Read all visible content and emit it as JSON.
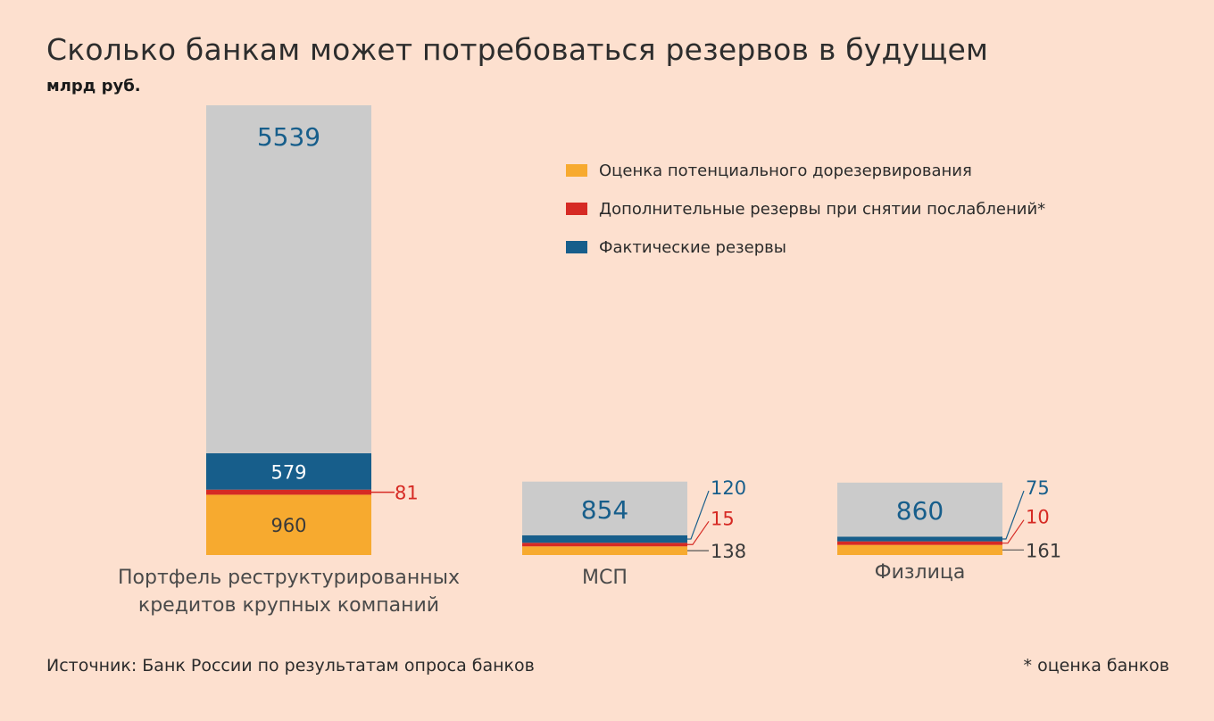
{
  "title": "Сколько банкам может потребоваться резервов в будущем",
  "unit": "млрд руб.",
  "source": "Источник: Банк России по результатам опроса банков",
  "footnote": "* оценка банков",
  "colors": {
    "background": "#fde0cf",
    "estimate": "#f7aa2f",
    "additional": "#d62a24",
    "actual": "#175e8b",
    "portfolio": "#cbcbcb"
  },
  "legend": [
    {
      "label": "Оценка потенциального дорезервирования",
      "color": "#f7aa2f"
    },
    {
      "label": "Дополнительные резервы при снятии послаблений*",
      "color": "#d62a24"
    },
    {
      "label": "Фактические резервы",
      "color": "#175e8b"
    }
  ],
  "chart_data": {
    "type": "bar",
    "stacked": true,
    "categories": [
      [
        "Портфель реструктурированных",
        "кредитов крупных компаний"
      ],
      [
        "МСП"
      ],
      [
        "Физлица"
      ]
    ],
    "series": [
      {
        "name": "Оценка потенциального дорезервирования",
        "values": [
          960,
          138,
          161
        ]
      },
      {
        "name": "Дополнительные резервы при снятии послаблений*",
        "values": [
          81,
          15,
          10
        ]
      },
      {
        "name": "Фактические резервы",
        "values": [
          579,
          120,
          75
        ]
      },
      {
        "values": [
          5539,
          854,
          860
        ]
      }
    ],
    "legend_position": "top-right",
    "grid": false
  }
}
